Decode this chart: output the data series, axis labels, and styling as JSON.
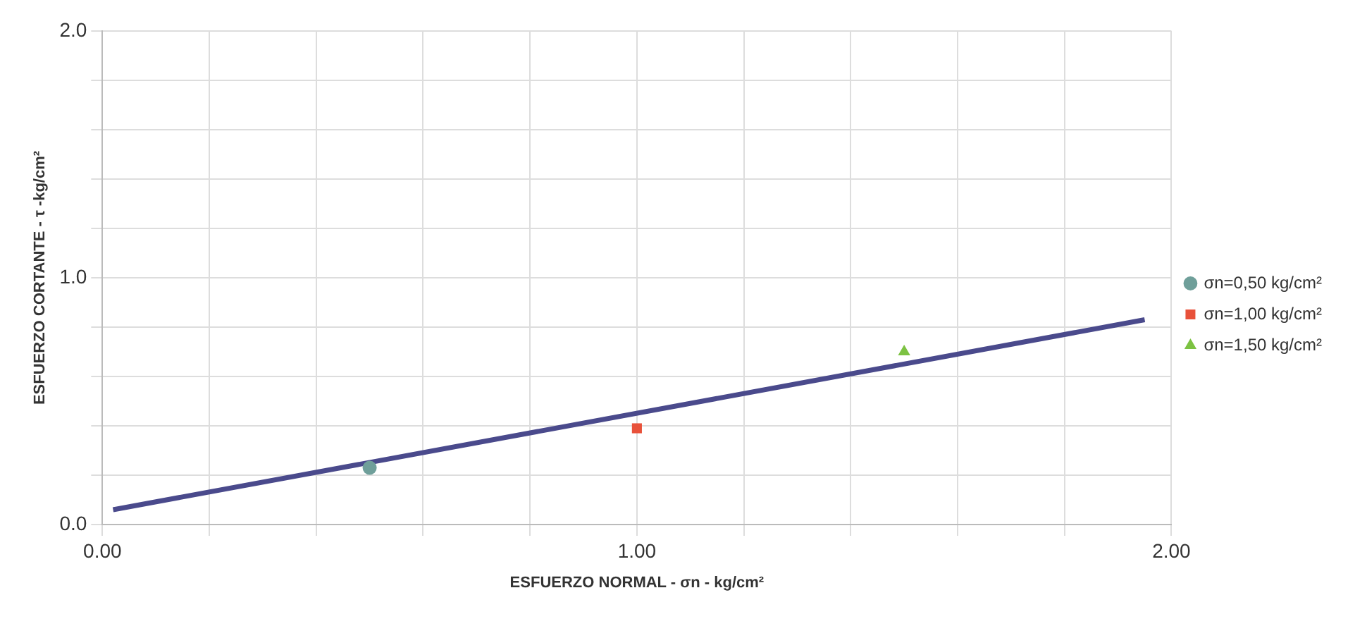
{
  "chart_data": {
    "type": "scatter",
    "xlabel": "ESFUERZO NORMAL - σn - kg/cm²",
    "ylabel": "ESFUERZO CORTANTE - τ -kg/cm²",
    "xlim": [
      0,
      2
    ],
    "ylim": [
      0,
      2
    ],
    "xticks": [
      {
        "value": 0,
        "label": "0.00"
      },
      {
        "value": 0.2,
        "label": null
      },
      {
        "value": 0.4,
        "label": null
      },
      {
        "value": 0.6,
        "label": null
      },
      {
        "value": 0.8,
        "label": null
      },
      {
        "value": 1,
        "label": "1.00"
      },
      {
        "value": 1.2,
        "label": null
      },
      {
        "value": 1.4,
        "label": null
      },
      {
        "value": 1.6,
        "label": null
      },
      {
        "value": 1.8,
        "label": null
      },
      {
        "value": 2,
        "label": "2.00"
      }
    ],
    "yticks": [
      {
        "value": 0,
        "label": "0.0"
      },
      {
        "value": 0.2,
        "label": null
      },
      {
        "value": 0.4,
        "label": null
      },
      {
        "value": 0.6,
        "label": null
      },
      {
        "value": 0.8,
        "label": null
      },
      {
        "value": 1,
        "label": "1.0"
      },
      {
        "value": 1.2,
        "label": null
      },
      {
        "value": 1.4,
        "label": null
      },
      {
        "value": 1.6,
        "label": null
      },
      {
        "value": 1.8,
        "label": null
      },
      {
        "value": 2,
        "label": "2.0"
      }
    ],
    "grid": true,
    "legend": "right",
    "series": [
      {
        "name": "σn=0,50 kg/cm²",
        "color": "#6f9f9a",
        "x": [
          0.5
        ],
        "values": [
          0.23
        ],
        "marker": "circle"
      },
      {
        "name": "σn=1,00 kg/cm²",
        "color": "#e8513a",
        "x": [
          1.0
        ],
        "values": [
          0.39
        ],
        "marker": "square"
      },
      {
        "name": "σn=1,50 kg/cm²",
        "color": "#7cc242",
        "x": [
          1.5
        ],
        "values": [
          0.7
        ],
        "marker": "triangle"
      },
      {
        "type": "line",
        "color": "#4a4a8c",
        "x": [
          0.02,
          1.95
        ],
        "values": [
          0.06,
          0.83
        ],
        "marker": "none"
      }
    ]
  }
}
